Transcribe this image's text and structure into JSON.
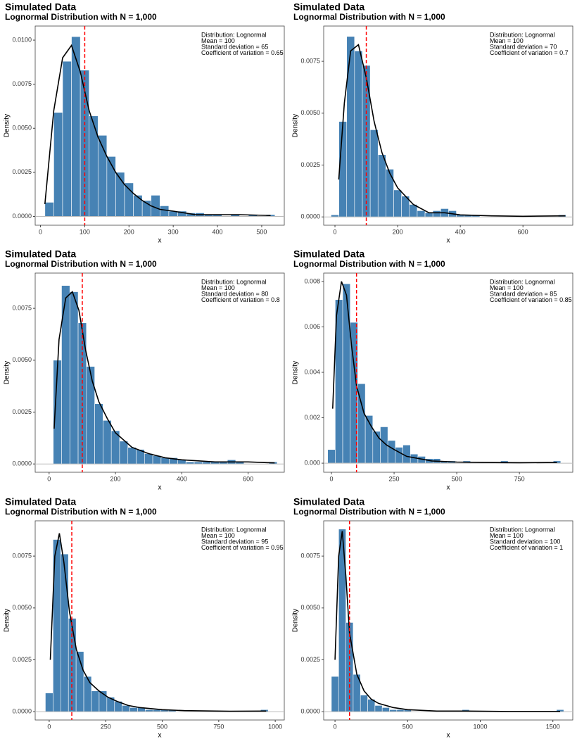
{
  "chart_data": [
    {
      "type": "histogram",
      "title": "Simulated Data",
      "subtitle": "Lognormal Distribution with N = 1,000",
      "xlabel": "x",
      "ylabel": "Density",
      "annotations": [
        "Distribution:  Lognormal",
        "Mean = 100",
        "Standard deviation = 65",
        "Coefficient of variation = 0.65"
      ],
      "color": "#4682b4",
      "line_color": "#000000",
      "vline_color": "#ff0000",
      "vline": 100,
      "bins": [
        10,
        30,
        50,
        70,
        90,
        110,
        130,
        150,
        170,
        190,
        210,
        230,
        250,
        270,
        290,
        310,
        330,
        350,
        370,
        390,
        410,
        430,
        450,
        470,
        490,
        510,
        530
      ],
      "values": [
        0.0008,
        0.0059,
        0.0088,
        0.0102,
        0.0083,
        0.0057,
        0.0046,
        0.0034,
        0.0025,
        0.0019,
        0.0012,
        0.0009,
        0.0012,
        0.0006,
        0.0003,
        0.0003,
        0.0002,
        0.0002,
        0.0001,
        0.0001,
        0,
        0.0001,
        0,
        0.0001,
        0,
        0.0001
      ],
      "density": {
        "x": [
          10,
          30,
          50,
          70,
          90,
          110,
          130,
          150,
          170,
          190,
          210,
          230,
          250,
          270,
          300,
          350,
          400,
          450,
          520
        ],
        "values": [
          0.0007,
          0.006,
          0.009,
          0.0097,
          0.0082,
          0.006,
          0.0045,
          0.0034,
          0.0025,
          0.0018,
          0.0013,
          0.0009,
          0.0006,
          0.0004,
          0.0003,
          0.0001,
          0.0001,
          0.0001,
          5e-05
        ]
      },
      "xlim": [
        -12,
        551
      ],
      "xticks": [
        0,
        100,
        200,
        300,
        400,
        500
      ],
      "ylim": [
        -0.0005,
        0.0108
      ],
      "yticks": [
        {
          "value": 0,
          "label": "0.0000"
        },
        {
          "value": 0.0025,
          "label": "0.0025"
        },
        {
          "value": 0.005,
          "label": "0.0050"
        },
        {
          "value": 0.0075,
          "label": "0.0075"
        },
        {
          "value": 0.01,
          "label": "0.0100"
        }
      ]
    },
    {
      "type": "histogram",
      "title": "Simulated Data",
      "subtitle": "Lognormal Distribution with N = 1,000",
      "xlabel": "x",
      "ylabel": "Density",
      "annotations": [
        "Distribution:  Lognormal",
        "Mean = 100",
        "Standard deviation = 70",
        "Coefficient of variation = 0.7"
      ],
      "color": "#4682b4",
      "line_color": "#000000",
      "vline_color": "#ff0000",
      "vline": 100,
      "bins": [
        -12.5,
        12.5,
        37.5,
        62.5,
        87.5,
        112.5,
        137.5,
        162.5,
        187.5,
        212.5,
        237.5,
        262.5,
        287.5,
        312.5,
        337.5,
        362.5,
        387.5,
        412.5,
        437.5,
        462.5,
        487.5,
        512.5,
        537.5,
        562.5,
        587.5,
        612.5,
        637.5,
        662.5,
        687.5,
        712.5,
        737.5
      ],
      "values": [
        0.0001,
        0.0046,
        0.0087,
        0.008,
        0.0073,
        0.0042,
        0.003,
        0.0023,
        0.0013,
        0.001,
        0.0006,
        0.0003,
        0.0002,
        0.0003,
        0.0004,
        0.0003,
        0.0001,
        0.0001,
        0.0001,
        0,
        0,
        0,
        0,
        0,
        0,
        0,
        0,
        0,
        0,
        0.0001
      ],
      "density": {
        "x": [
          12,
          30,
          50,
          75,
          100,
          125,
          150,
          175,
          200,
          250,
          300,
          350,
          400,
          500,
          600,
          735
        ],
        "values": [
          0.0018,
          0.0055,
          0.008,
          0.0083,
          0.0067,
          0.0046,
          0.0031,
          0.0021,
          0.0014,
          0.0006,
          0.0002,
          0.0002,
          0.0001,
          5e-05,
          3e-05,
          5e-05
        ]
      },
      "xlim": [
        -36,
        759
      ],
      "xticks": [
        0,
        200,
        400,
        600
      ],
      "ylim": [
        -0.0004,
        0.0092
      ],
      "yticks": [
        {
          "value": 0,
          "label": "0.0000"
        },
        {
          "value": 0.0025,
          "label": "0.0025"
        },
        {
          "value": 0.005,
          "label": "0.0050"
        },
        {
          "value": 0.0075,
          "label": "0.0075"
        }
      ]
    },
    {
      "type": "histogram",
      "title": "Simulated Data",
      "subtitle": "Lognormal Distribution with N = 1,000",
      "xlabel": "x",
      "ylabel": "Density",
      "annotations": [
        "Distribution:  Lognormal",
        "Mean = 100",
        "Standard deviation = 80",
        "Coefficient of variation = 0.8"
      ],
      "color": "#4682b4",
      "line_color": "#000000",
      "vline_color": "#ff0000",
      "vline": 100,
      "bins": [
        12.5,
        37.5,
        62.5,
        87.5,
        112.5,
        137.5,
        162.5,
        187.5,
        212.5,
        237.5,
        262.5,
        287.5,
        312.5,
        337.5,
        362.5,
        387.5,
        412.5,
        437.5,
        462.5,
        487.5,
        512.5,
        537.5,
        562.5,
        587.5,
        612.5,
        637.5,
        662.5,
        687.5
      ],
      "values": [
        0.005,
        0.0086,
        0.0083,
        0.0068,
        0.0047,
        0.0029,
        0.0021,
        0.0016,
        0.0011,
        0.0008,
        0.0007,
        0.0005,
        0.0004,
        0.0003,
        0.0003,
        0.0002,
        0.0001,
        0.0001,
        0.0001,
        0.0001,
        0.0001,
        0.0002,
        0.0001,
        0,
        0,
        0,
        0.0001
      ],
      "density": {
        "x": [
          15,
          30,
          50,
          70,
          90,
          110,
          130,
          150,
          175,
          200,
          250,
          300,
          350,
          400,
          500,
          600,
          680
        ],
        "values": [
          0.0017,
          0.006,
          0.008,
          0.0083,
          0.0074,
          0.0055,
          0.004,
          0.003,
          0.0022,
          0.0015,
          0.0008,
          0.0005,
          0.0003,
          0.0002,
          0.0001,
          0.0001,
          5e-05
        ]
      },
      "xlim": [
        -42,
        709
      ],
      "xticks": [
        0,
        200,
        400,
        600
      ],
      "ylim": [
        -0.0004,
        0.0092
      ],
      "yticks": [
        {
          "value": 0,
          "label": "0.0000"
        },
        {
          "value": 0.0025,
          "label": "0.0025"
        },
        {
          "value": 0.005,
          "label": "0.0050"
        },
        {
          "value": 0.0075,
          "label": "0.0075"
        }
      ]
    },
    {
      "type": "histogram",
      "title": "Simulated Data",
      "subtitle": "Lognormal Distribution with N = 1,000",
      "xlabel": "x",
      "ylabel": "Density",
      "annotations": [
        "Distribution:  Lognormal",
        "Mean = 100",
        "Standard deviation = 85",
        "Coefficient of variation = 0.85"
      ],
      "color": "#4682b4",
      "line_color": "#000000",
      "vline_color": "#ff0000",
      "vline": 100,
      "bins": [
        -15,
        15,
        45,
        75,
        105,
        135,
        165,
        195,
        225,
        255,
        285,
        315,
        345,
        375,
        405,
        435,
        465,
        495,
        525,
        555,
        585,
        615,
        645,
        675,
        705,
        735,
        765,
        795,
        825,
        855,
        885,
        915
      ],
      "values": [
        0.0006,
        0.0072,
        0.0079,
        0.0062,
        0.0035,
        0.0021,
        0.0014,
        0.0016,
        0.001,
        0.0007,
        0.0008,
        0.0004,
        0.0003,
        0.0002,
        0.0002,
        0.0001,
        0.0001,
        0,
        0.0001,
        0,
        0,
        0,
        0,
        0.0001,
        0,
        0,
        0,
        0,
        0,
        0,
        0.0001
      ],
      "density": {
        "x": [
          5,
          20,
          40,
          60,
          80,
          100,
          130,
          160,
          190,
          220,
          250,
          300,
          400,
          500,
          600,
          750,
          900
        ],
        "values": [
          0.0024,
          0.0065,
          0.008,
          0.0074,
          0.0052,
          0.0034,
          0.0022,
          0.0016,
          0.0011,
          0.0008,
          0.0006,
          0.0003,
          0.0001,
          5e-05,
          3e-05,
          2e-05,
          3e-05
        ]
      },
      "xlim": [
        -31,
        963
      ],
      "xticks": [
        0,
        250,
        500,
        750
      ],
      "ylim": [
        -0.0004,
        0.00837
      ],
      "yticks": [
        {
          "value": 0,
          "label": "0.000"
        },
        {
          "value": 0.002,
          "label": "0.002"
        },
        {
          "value": 0.004,
          "label": "0.004"
        },
        {
          "value": 0.006,
          "label": "0.006"
        },
        {
          "value": 0.008,
          "label": "0.008"
        }
      ]
    },
    {
      "type": "histogram",
      "title": "Simulated Data",
      "subtitle": "Lognormal Distribution with N = 1,000",
      "xlabel": "x",
      "ylabel": "Density",
      "annotations": [
        "Distribution:  Lognormal",
        "Mean = 100",
        "Standard deviation = 95",
        "Coefficient of variation = 0.95"
      ],
      "color": "#4682b4",
      "line_color": "#000000",
      "vline_color": "#ff0000",
      "vline": 100,
      "bins": [
        -17,
        17,
        51,
        85,
        119,
        153,
        187,
        221,
        255,
        289,
        323,
        357,
        391,
        425,
        459,
        493,
        527,
        561,
        595,
        629,
        663,
        697,
        731,
        765,
        799,
        833,
        867,
        901,
        935,
        969
      ],
      "values": [
        0.0009,
        0.0083,
        0.0076,
        0.0045,
        0.0029,
        0.0017,
        0.001,
        0.001,
        0.0007,
        0.0005,
        0.0003,
        0.0002,
        0.0002,
        0.0001,
        0.0001,
        0.0001,
        0.0001,
        0,
        0,
        0,
        0,
        0,
        0,
        0,
        0,
        0,
        0,
        0,
        0.0001
      ],
      "density": {
        "x": [
          5,
          25,
          45,
          65,
          90,
          120,
          150,
          180,
          220,
          260,
          300,
          350,
          400,
          500,
          600,
          800,
          960
        ],
        "values": [
          0.0025,
          0.0075,
          0.0086,
          0.0072,
          0.0048,
          0.003,
          0.002,
          0.0014,
          0.001,
          0.0007,
          0.0005,
          0.0003,
          0.0002,
          0.0001,
          5e-05,
          2e-05,
          3e-05
        ]
      },
      "xlim": [
        -62,
        1040
      ],
      "xticks": [
        0,
        250,
        500,
        750,
        1000
      ],
      "ylim": [
        -0.0004,
        0.0092
      ],
      "yticks": [
        {
          "value": 0,
          "label": "0.0000"
        },
        {
          "value": 0.0025,
          "label": "0.0025"
        },
        {
          "value": 0.005,
          "label": "0.0050"
        },
        {
          "value": 0.0075,
          "label": "0.0075"
        }
      ]
    },
    {
      "type": "histogram",
      "title": "Simulated Data",
      "subtitle": "Lognormal Distribution with N = 1,000",
      "xlabel": "x",
      "ylabel": "Density",
      "annotations": [
        "Distribution:  Lognormal",
        "Mean = 100",
        "Standard deviation = 100",
        "Coefficient of variation = 1"
      ],
      "color": "#4682b4",
      "line_color": "#000000",
      "vline_color": "#ff0000",
      "vline": 100,
      "bins": [
        -25,
        25,
        75,
        125,
        175,
        225,
        275,
        325,
        375,
        425,
        475,
        525,
        575,
        625,
        675,
        725,
        775,
        825,
        875,
        925,
        975,
        1025,
        1075,
        1125,
        1175,
        1225,
        1275,
        1325,
        1375,
        1425,
        1475,
        1525,
        1575
      ],
      "values": [
        0.0017,
        0.0088,
        0.0043,
        0.0018,
        0.0008,
        0.0006,
        0.0003,
        0.0002,
        0.0001,
        0.0001,
        0.0001,
        0,
        0,
        0,
        0,
        0,
        0,
        0,
        0.0001,
        0,
        0,
        0,
        0,
        0,
        0,
        0,
        0,
        0,
        0,
        0,
        0,
        0.0001
      ],
      "density": {
        "x": [
          0,
          25,
          50,
          75,
          100,
          150,
          200,
          250,
          300,
          400,
          500,
          700,
          900,
          1200,
          1550
        ],
        "values": [
          0.0025,
          0.0075,
          0.0087,
          0.0065,
          0.0038,
          0.0018,
          0.001,
          0.0006,
          0.0004,
          0.0002,
          0.0001,
          3e-05,
          3e-05,
          1e-05,
          1e-05
        ]
      },
      "xlim": [
        -78,
        1637
      ],
      "xticks": [
        0,
        500,
        1000,
        1500
      ],
      "ylim": [
        -0.0004,
        0.0092
      ],
      "yticks": [
        {
          "value": 0,
          "label": "0.0000"
        },
        {
          "value": 0.0025,
          "label": "0.0025"
        },
        {
          "value": 0.005,
          "label": "0.0050"
        },
        {
          "value": 0.0075,
          "label": "0.0075"
        }
      ]
    }
  ]
}
